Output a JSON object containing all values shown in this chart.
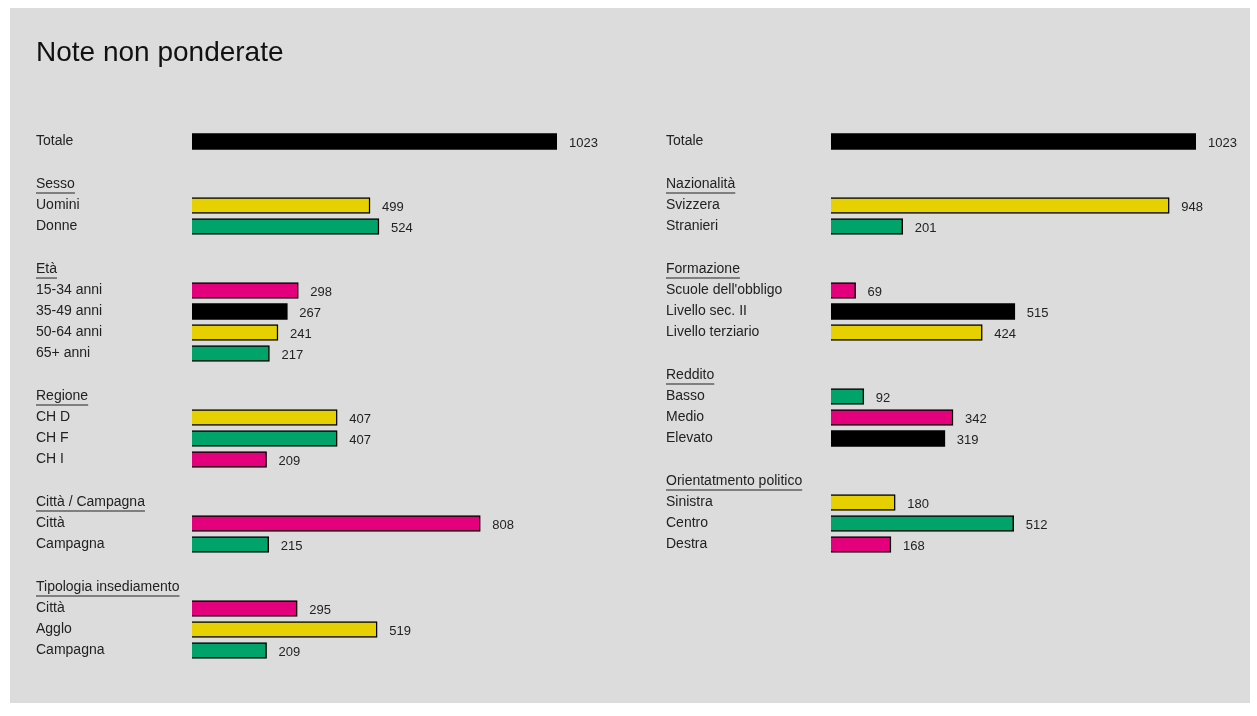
{
  "chart_data": [
    {
      "type": "bar",
      "title": "Note non ponderate",
      "orientation": "horizontal",
      "data_labels": true,
      "categories": [
        "Totale",
        "Sesso",
        "Uomini",
        "Donne",
        "Età",
        "15-34 anni",
        "35-49 anni",
        "50-64 anni",
        "65+ anni",
        "Regione",
        "CH D",
        "CH F",
        "CH I",
        "Città / Campagna",
        "Città",
        "Campagna",
        "Tipologia insediamento",
        "Città",
        "Agglo",
        "Campagna"
      ],
      "values": [
        1023,
        null,
        499,
        524,
        null,
        298,
        267,
        241,
        217,
        null,
        407,
        407,
        209,
        null,
        808,
        215,
        null,
        295,
        519,
        209
      ],
      "colors": [
        "#000000",
        null,
        "#e6d000",
        "#00a36a",
        null,
        "#e4007c",
        "#000000",
        "#e6d000",
        "#00a36a",
        null,
        "#e6d000",
        "#00a36a",
        "#e4007c",
        null,
        "#e4007c",
        "#00a36a",
        null,
        "#e4007c",
        "#e6d000",
        "#00a36a"
      ]
    },
    {
      "type": "bar",
      "orientation": "horizontal",
      "data_labels": true,
      "categories": [
        "Totale",
        "Nazionalità",
        "Svizzera",
        "Stranieri",
        "Formazione",
        "Scuole dell'obbligo",
        "Livello sec. II",
        "Livello terziario",
        "Reddito",
        "Basso",
        "Medio",
        "Elevato",
        "Orientatmento politico",
        "Sinistra",
        "Centro",
        "Destra"
      ],
      "values": [
        1023,
        null,
        948,
        201,
        null,
        69,
        515,
        424,
        null,
        92,
        342,
        319,
        null,
        180,
        512,
        168
      ],
      "colors": [
        "#000000",
        null,
        "#e6d000",
        "#00a36a",
        null,
        "#e4007c",
        "#000000",
        "#e6d000",
        null,
        "#00a36a",
        "#e4007c",
        "#000000",
        null,
        "#e6d000",
        "#00a36a",
        "#e4007c"
      ]
    }
  ]
}
